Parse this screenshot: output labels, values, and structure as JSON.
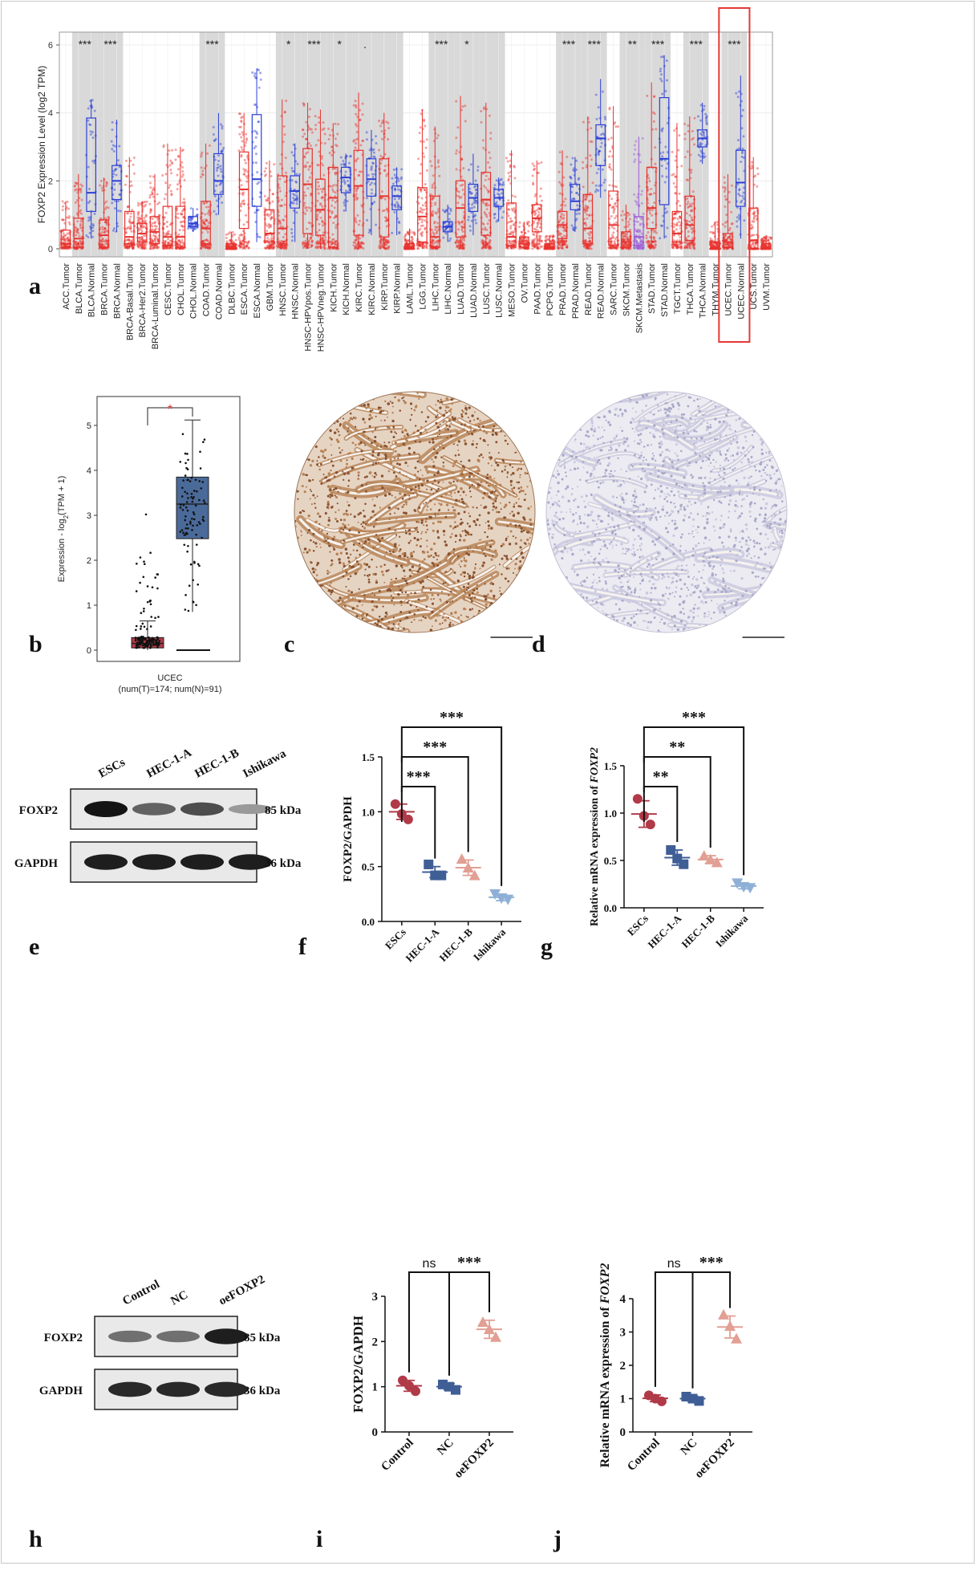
{
  "panel_letters": [
    "a",
    "b",
    "c",
    "d",
    "e",
    "f",
    "g",
    "h",
    "i",
    "j"
  ],
  "chart_data": [
    {
      "panel": "a",
      "type": "box",
      "ylabel": "FOXP2 Expression Level (log2 TPM)",
      "ylim": [
        0,
        6
      ],
      "yticks": [
        "0",
        "2",
        "4",
        "6"
      ],
      "grid": true,
      "categories": [
        "ACC.Tumor",
        "BLCA.Tumor",
        "BLCA.Normal",
        "BRCA.Tumor",
        "BRCA.Normal",
        "BRCA-Basal.Tumor",
        "BRCA-Her2.Tumor",
        "BRCA-Luminal.Tumor",
        "CESC.Tumor",
        "CHOL.Tumor",
        "CHOL.Normal",
        "COAD.Tumor",
        "COAD.Normal",
        "DLBC.Tumor",
        "ESCA.Tumor",
        "ESCA.Normal",
        "GBM.Tumor",
        "HNSC.Tumor",
        "HNSC.Normal",
        "HNSC-HPVpos.Tumor",
        "HNSC-HPVneg.Tumor",
        "KICH.Tumor",
        "KICH.Normal",
        "KIRC.Tumor",
        "KIRC.Normal",
        "KIRP.Tumor",
        "KIRP.Normal",
        "LAML.Tumor",
        "LGG.Tumor",
        "LIHC.Tumor",
        "LIHC.Normal",
        "LUAD.Tumor",
        "LUAD.Normal",
        "LUSC.Tumor",
        "LUSC.Normal",
        "MESO.Tumor",
        "OV.Tumor",
        "PAAD.Tumor",
        "PCPG.Tumor",
        "PRAD.Tumor",
        "PRAD.Normal",
        "READ.Tumor",
        "READ.Normal",
        "SARC.Tumor",
        "SKCM.Tumor",
        "SKCM.Metastasis",
        "STAD.Tumor",
        "STAD.Normal",
        "TGCT.Tumor",
        "THCA.Tumor",
        "THCA.Normal",
        "THYM.Tumor",
        "UCEC.Tumor",
        "UCEC.Normal",
        "UCS.Tumor",
        "UVM.Tumor"
      ],
      "group": [
        "T",
        "T",
        "N",
        "T",
        "N",
        "T",
        "T",
        "T",
        "T",
        "T",
        "N",
        "T",
        "N",
        "T",
        "T",
        "N",
        "T",
        "T",
        "N",
        "T",
        "T",
        "T",
        "N",
        "T",
        "N",
        "T",
        "N",
        "T",
        "T",
        "T",
        "N",
        "T",
        "N",
        "T",
        "N",
        "T",
        "T",
        "T",
        "T",
        "T",
        "N",
        "T",
        "N",
        "T",
        "T",
        "M",
        "T",
        "N",
        "T",
        "T",
        "N",
        "T",
        "T",
        "N",
        "T",
        "T"
      ],
      "boxes": [
        {
          "q1": 0.05,
          "med": 0.15,
          "q3": 0.55,
          "lo": 0,
          "hi": 1.4
        },
        {
          "q1": 0.05,
          "med": 0.3,
          "q3": 0.9,
          "lo": 0,
          "hi": 2.2
        },
        {
          "q1": 1.1,
          "med": 1.65,
          "q3": 3.85,
          "lo": 0.3,
          "hi": 4.4
        },
        {
          "q1": 0.05,
          "med": 0.4,
          "q3": 0.85,
          "lo": 0,
          "hi": 2.1
        },
        {
          "q1": 1.45,
          "med": 2.0,
          "q3": 2.45,
          "lo": 0.5,
          "hi": 3.8
        },
        {
          "q1": 0.15,
          "med": 0.35,
          "q3": 1.1,
          "lo": 0,
          "hi": 2.7
        },
        {
          "q1": 0.2,
          "med": 0.45,
          "q3": 0.75,
          "lo": 0,
          "hi": 1.4
        },
        {
          "q1": 0.15,
          "med": 0.5,
          "q3": 0.95,
          "lo": 0,
          "hi": 2.2
        },
        {
          "q1": 0.1,
          "med": 0.35,
          "q3": 1.25,
          "lo": 0,
          "hi": 3.1
        },
        {
          "q1": 0.05,
          "med": 0.35,
          "q3": 1.25,
          "lo": 0,
          "hi": 3.0
        },
        {
          "q1": 0.65,
          "med": 0.75,
          "q3": 0.95,
          "lo": 0.5,
          "hi": 1.2
        },
        {
          "q1": 0.15,
          "med": 0.6,
          "q3": 1.4,
          "lo": 0,
          "hi": 3.1
        },
        {
          "q1": 1.6,
          "med": 2.0,
          "q3": 2.8,
          "lo": 1.0,
          "hi": 4.0
        },
        {
          "q1": 0.0,
          "med": 0.05,
          "q3": 0.15,
          "lo": 0,
          "hi": 0.5
        },
        {
          "q1": 0.6,
          "med": 1.75,
          "q3": 2.85,
          "lo": 0,
          "hi": 4.0
        },
        {
          "q1": 1.25,
          "med": 2.05,
          "q3": 3.95,
          "lo": 0.2,
          "hi": 5.3
        },
        {
          "q1": 0.2,
          "med": 0.45,
          "q3": 1.15,
          "lo": 0,
          "hi": 2.6
        },
        {
          "q1": 0.15,
          "med": 0.6,
          "q3": 2.15,
          "lo": 0,
          "hi": 4.4
        },
        {
          "q1": 1.2,
          "med": 1.7,
          "q3": 2.15,
          "lo": 0.2,
          "hi": 3.1
        },
        {
          "q1": 0.45,
          "med": 1.9,
          "q3": 2.95,
          "lo": 0,
          "hi": 4.3
        },
        {
          "q1": 0.4,
          "med": 1.15,
          "q3": 2.05,
          "lo": 0,
          "hi": 4.1
        },
        {
          "q1": 0.05,
          "med": 1.5,
          "q3": 2.4,
          "lo": 0,
          "hi": 3.7
        },
        {
          "q1": 1.65,
          "med": 2.1,
          "q3": 2.4,
          "lo": 1.1,
          "hi": 2.8
        },
        {
          "q1": 0.4,
          "med": 1.85,
          "q3": 2.9,
          "lo": 0,
          "hi": 4.6
        },
        {
          "q1": 1.55,
          "med": 2.05,
          "q3": 2.65,
          "lo": 0.4,
          "hi": 3.5
        },
        {
          "q1": 0.35,
          "med": 1.55,
          "q3": 2.65,
          "lo": 0,
          "hi": 4.0
        },
        {
          "q1": 1.15,
          "med": 1.55,
          "q3": 1.85,
          "lo": 0.4,
          "hi": 2.4
        },
        {
          "q1": 0.0,
          "med": 0.05,
          "q3": 0.15,
          "lo": 0,
          "hi": 0.6
        },
        {
          "q1": 0.2,
          "med": 0.95,
          "q3": 1.8,
          "lo": 0,
          "hi": 4.1
        },
        {
          "q1": 0.05,
          "med": 0.35,
          "q3": 1.55,
          "lo": 0,
          "hi": 3.6
        },
        {
          "q1": 0.5,
          "med": 0.65,
          "q3": 0.8,
          "lo": 0.2,
          "hi": 1.3
        },
        {
          "q1": 0.35,
          "med": 1.2,
          "q3": 2.0,
          "lo": 0,
          "hi": 4.5
        },
        {
          "q1": 1.1,
          "med": 1.5,
          "q3": 1.9,
          "lo": 0.4,
          "hi": 2.8
        },
        {
          "q1": 0.4,
          "med": 1.45,
          "q3": 2.25,
          "lo": 0,
          "hi": 4.3
        },
        {
          "q1": 1.25,
          "med": 1.5,
          "q3": 1.75,
          "lo": 0.8,
          "hi": 2.1
        },
        {
          "q1": 0.1,
          "med": 0.35,
          "q3": 1.35,
          "lo": 0,
          "hi": 2.9
        },
        {
          "q1": 0.05,
          "med": 0.15,
          "q3": 0.35,
          "lo": 0,
          "hi": 0.8
        },
        {
          "q1": 0.5,
          "med": 0.9,
          "q3": 1.3,
          "lo": 0,
          "hi": 2.6
        },
        {
          "q1": 0.0,
          "med": 0.05,
          "q3": 0.15,
          "lo": 0,
          "hi": 0.4
        },
        {
          "q1": 0.3,
          "med": 0.7,
          "q3": 1.1,
          "lo": 0,
          "hi": 2.9
        },
        {
          "q1": 1.15,
          "med": 1.4,
          "q3": 1.9,
          "lo": 0.5,
          "hi": 2.7
        },
        {
          "q1": 0.15,
          "med": 0.6,
          "q3": 1.6,
          "lo": 0,
          "hi": 3.9
        },
        {
          "q1": 2.45,
          "med": 3.25,
          "q3": 3.65,
          "lo": 1.5,
          "hi": 5.0
        },
        {
          "q1": 0.1,
          "med": 0.7,
          "q3": 1.7,
          "lo": 0,
          "hi": 4.2
        },
        {
          "q1": 0.05,
          "med": 0.2,
          "q3": 0.5,
          "lo": 0,
          "hi": 1.3
        },
        {
          "q1": 0.1,
          "med": 0.35,
          "q3": 0.95,
          "lo": 0,
          "hi": 3.3
        },
        {
          "q1": 0.6,
          "med": 1.2,
          "q3": 2.4,
          "lo": 0,
          "hi": 4.9
        },
        {
          "q1": 1.3,
          "med": 2.65,
          "q3": 4.45,
          "lo": 0.3,
          "hi": 5.7
        },
        {
          "q1": 0.2,
          "med": 0.45,
          "q3": 1.1,
          "lo": 0,
          "hi": 3.7
        },
        {
          "q1": 0.25,
          "med": 0.7,
          "q3": 1.55,
          "lo": 0,
          "hi": 3.9
        },
        {
          "q1": 3.0,
          "med": 3.25,
          "q3": 3.5,
          "lo": 2.5,
          "hi": 4.3
        },
        {
          "q1": 0.0,
          "med": 0.05,
          "q3": 0.2,
          "lo": 0,
          "hi": 0.8
        },
        {
          "q1": 0.05,
          "med": 0.2,
          "q3": 0.45,
          "lo": 0,
          "hi": 2.2
        },
        {
          "q1": 1.25,
          "med": 1.95,
          "q3": 2.9,
          "lo": 0.3,
          "hi": 5.1
        },
        {
          "q1": 0.0,
          "med": 0.25,
          "q3": 1.2,
          "lo": 0,
          "hi": 2.7
        },
        {
          "q1": 0.0,
          "med": 0.05,
          "q3": 0.15,
          "lo": 0,
          "hi": 0.4
        }
      ],
      "shaded_columns": [
        [
          1,
          2
        ],
        [
          3,
          4
        ],
        [
          11,
          12
        ],
        [
          17,
          18
        ],
        [
          19,
          20
        ],
        [
          21,
          22
        ],
        [
          23,
          24
        ],
        [
          25,
          26
        ],
        [
          29,
          30
        ],
        [
          31,
          32
        ],
        [
          33,
          34
        ],
        [
          39,
          40
        ],
        [
          41,
          42
        ],
        [
          44,
          45
        ],
        [
          46,
          47
        ],
        [
          49,
          50
        ],
        [
          52,
          53
        ]
      ],
      "significance": [
        {
          "pair": [
            1,
            2
          ],
          "label": "***"
        },
        {
          "pair": [
            3,
            4
          ],
          "label": "***"
        },
        {
          "pair": [
            11,
            12
          ],
          "label": "***"
        },
        {
          "pair": [
            17,
            18
          ],
          "label": "*"
        },
        {
          "pair": [
            19,
            20
          ],
          "label": "***"
        },
        {
          "pair": [
            21,
            22
          ],
          "label": "*"
        },
        {
          "pair": [
            23,
            24
          ],
          "label": "."
        },
        {
          "pair": [
            29,
            30
          ],
          "label": "***"
        },
        {
          "pair": [
            31,
            32
          ],
          "label": "*"
        },
        {
          "pair": [
            39,
            40
          ],
          "label": "***"
        },
        {
          "pair": [
            41,
            42
          ],
          "label": "***"
        },
        {
          "pair": [
            44,
            45
          ],
          "label": "**"
        },
        {
          "pair": [
            46,
            47
          ],
          "label": "***"
        },
        {
          "pair": [
            49,
            50
          ],
          "label": "***"
        },
        {
          "pair": [
            52,
            53
          ],
          "label": "***"
        }
      ],
      "highlight_categories": [
        52,
        53
      ],
      "colors": {
        "tumor": "#e8322e",
        "normal": "#2b3fd6",
        "metastasis": "#9b59d6",
        "shade": "#d9d9d9",
        "highlight": "#e53935"
      }
    },
    {
      "panel": "b",
      "type": "box",
      "ylabel": "Expression - log2(TPM + 1)",
      "ylim": [
        0,
        5.3
      ],
      "yticks": [
        "0",
        "1",
        "2",
        "3",
        "4",
        "5"
      ],
      "xlabel": "UCEC",
      "subtitle": "(num(T)=174; num(N)=91)",
      "significance": "*",
      "boxes": [
        {
          "group": "T",
          "q1": 0.05,
          "med": 0.15,
          "q3": 0.28,
          "lo": 0,
          "hi": 0.65,
          "outlier_max": 3.02
        },
        {
          "group": "N",
          "q1": 2.48,
          "med": 3.25,
          "q3": 3.85,
          "lo": 0.85,
          "hi": 5.12
        }
      ],
      "colors": {
        "tumor": "#b03a48",
        "normal": "#4a6a9a",
        "sig": "#e53935"
      }
    },
    {
      "panel": "f",
      "type": "scatter",
      "ylabel": "FOXP2/GAPDH",
      "ylim": [
        0,
        1.5
      ],
      "yticks": [
        "0.0",
        "0.5",
        "1.0",
        "1.5"
      ],
      "categories": [
        "ESCs",
        "HEC-1-A",
        "HEC-1-B",
        "Ishikawa"
      ],
      "series": [
        {
          "mean": 1.0,
          "sd": 0.07,
          "points": [
            1.07,
            0.98,
            0.93
          ]
        },
        {
          "mean": 0.45,
          "sd": 0.05,
          "points": [
            0.52,
            0.42,
            0.42
          ]
        },
        {
          "mean": 0.49,
          "sd": 0.07,
          "points": [
            0.57,
            0.49,
            0.42
          ]
        },
        {
          "mean": 0.22,
          "sd": 0.03,
          "points": [
            0.25,
            0.21,
            0.2
          ]
        }
      ],
      "significance": [
        {
          "pair": [
            0,
            1
          ],
          "label": "***"
        },
        {
          "pair": [
            0,
            2
          ],
          "label": "***"
        },
        {
          "pair": [
            0,
            3
          ],
          "label": "***"
        }
      ],
      "colors": [
        "#b03a48",
        "#3f5e96",
        "#e29f93",
        "#8fb0d6"
      ],
      "markers": [
        "circle",
        "square",
        "triangle-up",
        "triangle-down"
      ]
    },
    {
      "panel": "g",
      "type": "scatter",
      "ylabel": "Relative mRNA expression of FOXP2",
      "ylim": [
        0,
        1.5
      ],
      "yticks": [
        "0.0",
        "0.5",
        "1.0",
        "1.5"
      ],
      "categories": [
        "ESCs",
        "HEC-1-A",
        "HEC-1-B",
        "Ishikawa"
      ],
      "series": [
        {
          "mean": 0.99,
          "sd": 0.14,
          "points": [
            1.15,
            0.97,
            0.88
          ]
        },
        {
          "mean": 0.53,
          "sd": 0.08,
          "points": [
            0.61,
            0.52,
            0.46
          ]
        },
        {
          "mean": 0.51,
          "sd": 0.04,
          "points": [
            0.55,
            0.51,
            0.48
          ]
        },
        {
          "mean": 0.23,
          "sd": 0.03,
          "points": [
            0.26,
            0.22,
            0.21
          ]
        }
      ],
      "significance": [
        {
          "pair": [
            0,
            1
          ],
          "label": "**"
        },
        {
          "pair": [
            0,
            2
          ],
          "label": "**"
        },
        {
          "pair": [
            0,
            3
          ],
          "label": "***"
        }
      ],
      "colors": [
        "#b03a48",
        "#3f5e96",
        "#e29f93",
        "#8fb0d6"
      ],
      "markers": [
        "circle",
        "square",
        "triangle-up",
        "triangle-down"
      ]
    },
    {
      "panel": "i",
      "type": "scatter",
      "ylabel": "FOXP2/GAPDH",
      "ylim": [
        0,
        3
      ],
      "yticks": [
        "0",
        "1",
        "2",
        "3"
      ],
      "categories": [
        "Control",
        "NC",
        "oeFOXP2"
      ],
      "series": [
        {
          "mean": 1.02,
          "sd": 0.12,
          "points": [
            1.14,
            1.02,
            0.9
          ]
        },
        {
          "mean": 1.0,
          "sd": 0.07,
          "points": [
            1.05,
            1.0,
            0.93
          ]
        },
        {
          "mean": 2.27,
          "sd": 0.2,
          "points": [
            2.43,
            2.27,
            2.1
          ]
        }
      ],
      "significance": [
        {
          "pair": [
            0,
            1
          ],
          "label": "ns"
        },
        {
          "pair": [
            1,
            2
          ],
          "label": "***"
        }
      ],
      "colors": [
        "#b03a48",
        "#3f5e96",
        "#e29f93"
      ],
      "markers": [
        "circle",
        "square",
        "triangle-up"
      ]
    },
    {
      "panel": "j",
      "type": "scatter",
      "ylabel": "Relative mRNA expression of FOXP2",
      "ylim": [
        0,
        4
      ],
      "yticks": [
        "0",
        "1",
        "2",
        "3",
        "4"
      ],
      "categories": [
        "Control",
        "NC",
        "oeFOXP2"
      ],
      "series": [
        {
          "mean": 1.01,
          "sd": 0.1,
          "points": [
            1.1,
            1.0,
            0.92
          ]
        },
        {
          "mean": 1.0,
          "sd": 0.07,
          "points": [
            1.06,
            1.0,
            0.93
          ]
        },
        {
          "mean": 3.15,
          "sd": 0.33,
          "points": [
            3.52,
            3.18,
            2.8
          ]
        }
      ],
      "significance": [
        {
          "pair": [
            0,
            1
          ],
          "label": "ns"
        },
        {
          "pair": [
            1,
            2
          ],
          "label": "***"
        }
      ],
      "colors": [
        "#b03a48",
        "#3f5e96",
        "#e29f93"
      ],
      "markers": [
        "circle",
        "square",
        "triangle-up"
      ]
    }
  ],
  "blots": [
    {
      "panel": "e",
      "lanes": [
        "ESCs",
        "HEC-1-A",
        "HEC-1-B",
        "Ishikawa"
      ],
      "rows": [
        {
          "name": "FOXP2",
          "size": "85 kDa",
          "intensity": [
            1.0,
            0.62,
            0.72,
            0.35
          ]
        },
        {
          "name": "GAPDH",
          "size": "36 kDa",
          "intensity": [
            0.95,
            0.95,
            0.95,
            0.95
          ]
        }
      ]
    },
    {
      "panel": "h",
      "lanes": [
        "Control",
        "NC",
        "oeFOXP2"
      ],
      "rows": [
        {
          "name": "FOXP2",
          "size": "85 kDa",
          "intensity": [
            0.55,
            0.55,
            0.95
          ]
        },
        {
          "name": "GAPDH",
          "size": "36 kDa",
          "intensity": [
            0.9,
            0.9,
            0.9
          ]
        }
      ]
    }
  ],
  "ihc": [
    {
      "panel": "c",
      "stain": "positive"
    },
    {
      "panel": "d",
      "stain": "negative"
    }
  ]
}
